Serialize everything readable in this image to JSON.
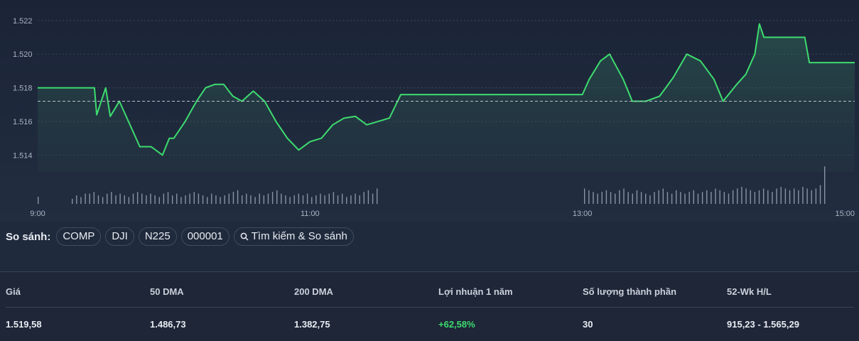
{
  "chart_data": {
    "type": "line",
    "series": [
      {
        "values": [
          [
            "9:00",
            1.518
          ],
          [
            "9:10",
            1.518
          ],
          [
            "9:20",
            1.518
          ],
          [
            "9:25",
            1.518
          ],
          [
            "9:26",
            1.5164
          ],
          [
            "9:30",
            1.518
          ],
          [
            "9:32",
            1.5163
          ],
          [
            "9:36",
            1.5172
          ],
          [
            "9:40",
            1.516
          ],
          [
            "9:45",
            1.5145
          ],
          [
            "9:50",
            1.5145
          ],
          [
            "9:55",
            1.514
          ],
          [
            "9:58",
            1.515
          ],
          [
            "10:00",
            1.515
          ],
          [
            "10:05",
            1.516
          ],
          [
            "10:10",
            1.5172
          ],
          [
            "10:14",
            1.518
          ],
          [
            "10:18",
            1.5182
          ],
          [
            "10:22",
            1.5182
          ],
          [
            "10:26",
            1.5175
          ],
          [
            "10:30",
            1.5172
          ],
          [
            "10:35",
            1.5178
          ],
          [
            "10:40",
            1.5172
          ],
          [
            "10:45",
            1.516
          ],
          [
            "10:50",
            1.515
          ],
          [
            "10:55",
            1.5143
          ],
          [
            "11:00",
            1.5148
          ],
          [
            "11:05",
            1.515
          ],
          [
            "11:10",
            1.5158
          ],
          [
            "11:15",
            1.5162
          ],
          [
            "11:20",
            1.5163
          ],
          [
            "11:25",
            1.5158
          ],
          [
            "11:30",
            1.516
          ],
          [
            "11:35",
            1.5162
          ],
          [
            "11:40",
            1.5176
          ],
          [
            "12:00",
            1.5176
          ],
          [
            "12:30",
            1.5176
          ],
          [
            "13:00",
            1.5176
          ],
          [
            "13:03",
            1.5185
          ],
          [
            "13:08",
            1.5196
          ],
          [
            "13:12",
            1.52
          ],
          [
            "13:18",
            1.5185
          ],
          [
            "13:22",
            1.5172
          ],
          [
            "13:28",
            1.5172
          ],
          [
            "13:34",
            1.5175
          ],
          [
            "13:40",
            1.5186
          ],
          [
            "13:46",
            1.52
          ],
          [
            "13:52",
            1.5196
          ],
          [
            "13:58",
            1.5185
          ],
          [
            "14:02",
            1.5172
          ],
          [
            "14:08",
            1.5182
          ],
          [
            "14:12",
            1.5188
          ],
          [
            "14:16",
            1.52
          ],
          [
            "14:18",
            1.5218
          ],
          [
            "14:20",
            1.521
          ],
          [
            "14:30",
            1.521
          ],
          [
            "14:38",
            1.521
          ],
          [
            "14:40",
            1.5195
          ],
          [
            "14:50",
            1.5195
          ],
          [
            "15:00",
            1.5195
          ]
        ]
      }
    ],
    "x_ticks": [
      "9:00",
      "11:00",
      "13:00",
      "15:00"
    ],
    "y_ticks": [
      "1.514",
      "1.516",
      "1.518",
      "1.520",
      "1.522"
    ],
    "ylim": [
      1.513,
      1.5225
    ],
    "reference_line": 1.5172,
    "volume_session_1": [
      3,
      5,
      4,
      6,
      6,
      7,
      5,
      4,
      6,
      7,
      5,
      6,
      5,
      4,
      6,
      7,
      6,
      5,
      6,
      5,
      4,
      6,
      7,
      5,
      6,
      4,
      5,
      6,
      7,
      6,
      5,
      4,
      6,
      5,
      4,
      5,
      6,
      7,
      8,
      5,
      6,
      5,
      4,
      6,
      5,
      6,
      7,
      8,
      6,
      5,
      4,
      5,
      6,
      5,
      6,
      4,
      5,
      6,
      5,
      6,
      7,
      5,
      6,
      4,
      5,
      6,
      5,
      7,
      8,
      6,
      9
    ],
    "volume_session_2": [
      9,
      8,
      7,
      6,
      7,
      8,
      7,
      6,
      8,
      9,
      7,
      6,
      8,
      7,
      6,
      5,
      7,
      8,
      9,
      7,
      6,
      8,
      7,
      6,
      7,
      8,
      6,
      7,
      8,
      7,
      9,
      8,
      7,
      6,
      8,
      9,
      10,
      9,
      8,
      7,
      8,
      9,
      8,
      7,
      9,
      10,
      9,
      8,
      9,
      8,
      10,
      9,
      8,
      9,
      11,
      22
    ],
    "colors": {
      "line": "#3ddc6f",
      "reference": "#b8c0cc",
      "volume": "#8a93a3",
      "grid": "#3d4759"
    }
  },
  "compare": {
    "label": "So sánh:",
    "chips": [
      "COMP",
      "DJI",
      "N225",
      "000001"
    ],
    "search_label": "Tìm kiếm & So sánh",
    "search_icon": "search-icon"
  },
  "stats": {
    "headers": [
      "Giá",
      "50 DMA",
      "200 DMA",
      "Lợi nhuận 1 năm",
      "Số lượng thành phần",
      "52-Wk H/L"
    ],
    "values": [
      "1.519,58",
      "1.486,73",
      "1.382,75",
      "+62,58%",
      "30",
      "915,23 - 1.565,29"
    ]
  }
}
